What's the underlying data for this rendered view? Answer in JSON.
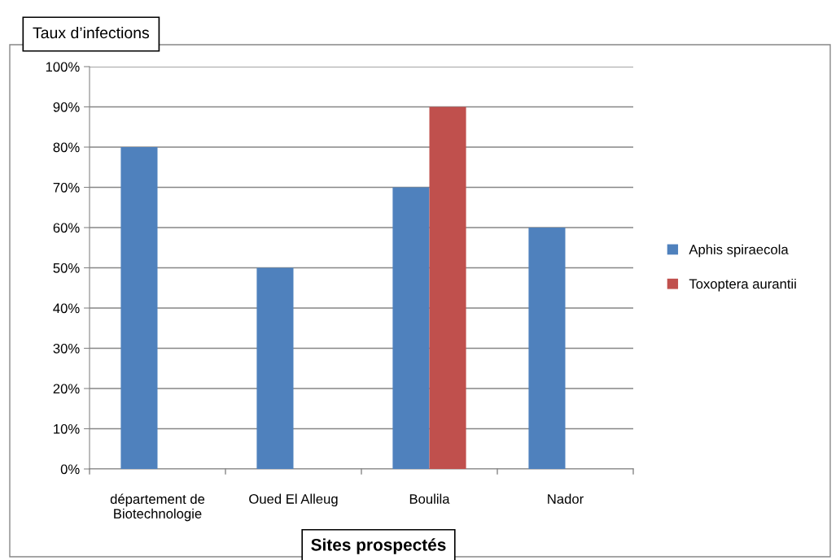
{
  "chart_data": {
    "type": "bar",
    "title": "Taux d’infections",
    "xlabel": "Sites prospectés",
    "categories": [
      "département de\nBiotechnologie",
      "Oued El Alleug",
      "Boulila",
      "Nador"
    ],
    "series": [
      {
        "name": "Aphis spiraecola",
        "color": "#4f81bd",
        "values": [
          80,
          50,
          70,
          60
        ]
      },
      {
        "name": "Toxoptera aurantii",
        "color": "#c0504d",
        "values": [
          null,
          null,
          90,
          null
        ]
      }
    ],
    "ylim": [
      0,
      100
    ],
    "yticks": [
      {
        "value": 0,
        "label": "0%"
      },
      {
        "value": 10,
        "label": "10%"
      },
      {
        "value": 20,
        "label": "20%"
      },
      {
        "value": 30,
        "label": "30%"
      },
      {
        "value": 40,
        "label": "40%"
      },
      {
        "value": 50,
        "label": "50%"
      },
      {
        "value": 60,
        "label": "60%"
      },
      {
        "value": 70,
        "label": "70%"
      },
      {
        "value": 80,
        "label": "80%"
      },
      {
        "value": 90,
        "label": "90%"
      },
      {
        "value": 100,
        "label": "100%"
      }
    ],
    "grid": "y",
    "legend": "right"
  }
}
